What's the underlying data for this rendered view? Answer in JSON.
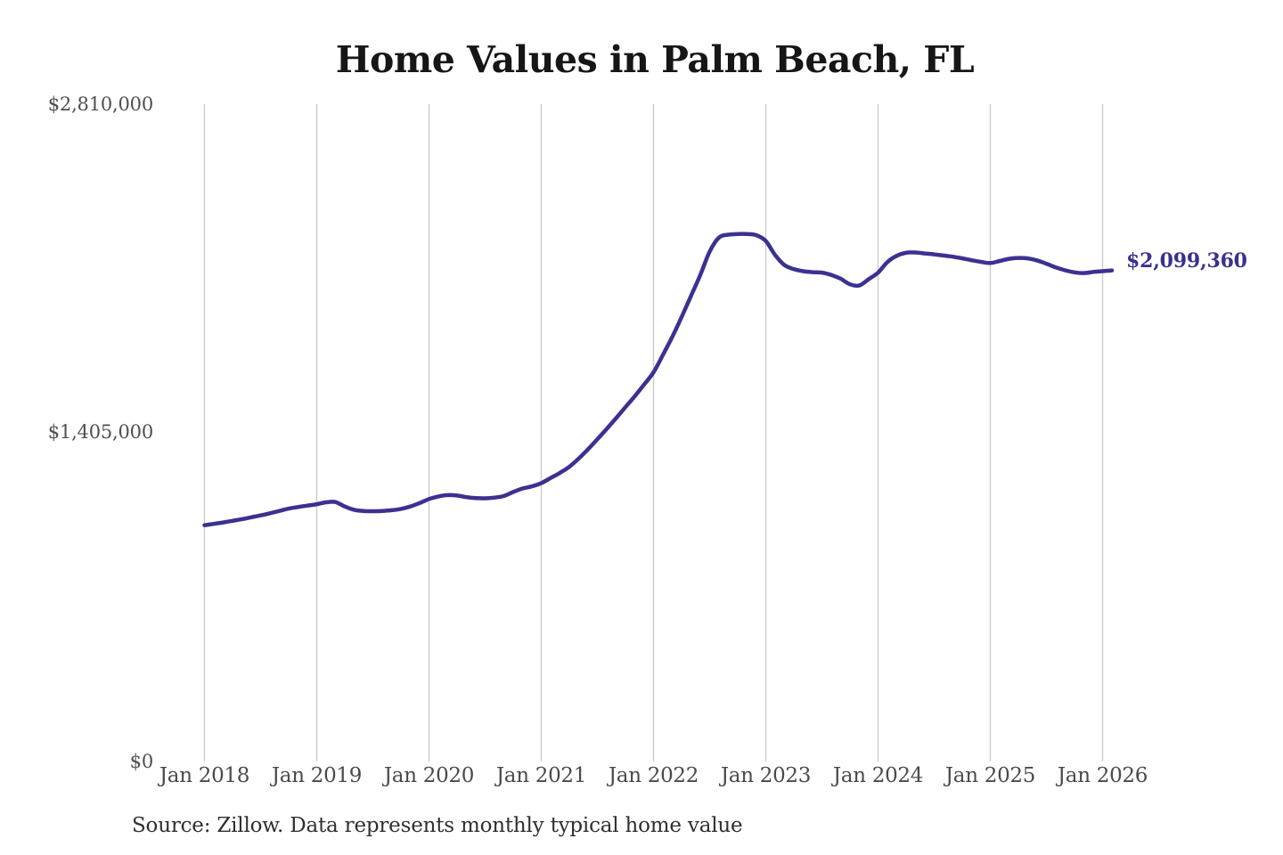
{
  "title": "Home Values in Palm Beach, FL",
  "source_note": "Source: Zillow. Data represents monthly typical home value",
  "colors": {
    "background": "#ffffff",
    "line": "#3b3191",
    "latest_value_label": "#39318f",
    "gridline": "#c9c9c9",
    "title_text": "#161616",
    "axis_text": "#4f4f4f",
    "source_text": "#2f2f2f"
  },
  "chart_data": {
    "type": "line",
    "title": "Home Values in Palm Beach, FL",
    "xlabel": "",
    "ylabel": "",
    "ylim": [
      0,
      2810000
    ],
    "grid": "vertical-only",
    "legend": "none",
    "y_ticks": [
      {
        "value": 0,
        "label": "$0"
      },
      {
        "value": 1405000,
        "label": "$1,405,000"
      },
      {
        "value": 2810000,
        "label": "$2,810,000"
      }
    ],
    "x_tick_labels": [
      "Jan 2018",
      "Jan 2019",
      "Jan 2020",
      "Jan 2021",
      "Jan 2022",
      "Jan 2023",
      "Jan 2024",
      "Jan 2025",
      "Jan 2026"
    ],
    "series": [
      {
        "name": "Monthly typical home value",
        "start_month": "2018-01",
        "frequency": "monthly",
        "last_value_label": "$2,099,360",
        "last_value": 2099360,
        "values": [
          1010000,
          1016000,
          1022000,
          1029000,
          1036000,
          1044000,
          1052000,
          1061000,
          1071000,
          1081000,
          1088000,
          1094000,
          1100000,
          1108000,
          1109000,
          1090000,
          1076000,
          1071000,
          1070000,
          1071000,
          1074000,
          1080000,
          1090000,
          1105000,
          1122000,
          1133000,
          1139000,
          1137000,
          1130000,
          1126000,
          1125000,
          1128000,
          1135000,
          1152000,
          1167000,
          1176000,
          1190000,
          1212000,
          1234000,
          1260000,
          1295000,
          1335000,
          1378000,
          1422000,
          1468000,
          1515000,
          1562000,
          1612000,
          1664000,
          1738000,
          1815000,
          1900000,
          1990000,
          2080000,
          2180000,
          2240000,
          2252000,
          2255000,
          2255000,
          2250000,
          2225000,
          2165000,
          2122000,
          2105000,
          2096000,
          2092000,
          2090000,
          2080000,
          2064000,
          2040000,
          2035000,
          2062000,
          2090000,
          2135000,
          2162000,
          2175000,
          2176000,
          2172000,
          2168000,
          2163000,
          2158000,
          2151000,
          2143000,
          2136000,
          2131000,
          2140000,
          2149000,
          2153000,
          2151000,
          2142000,
          2128000,
          2112000,
          2100000,
          2091000,
          2088000,
          2093000,
          2096000,
          2099360
        ]
      }
    ]
  }
}
